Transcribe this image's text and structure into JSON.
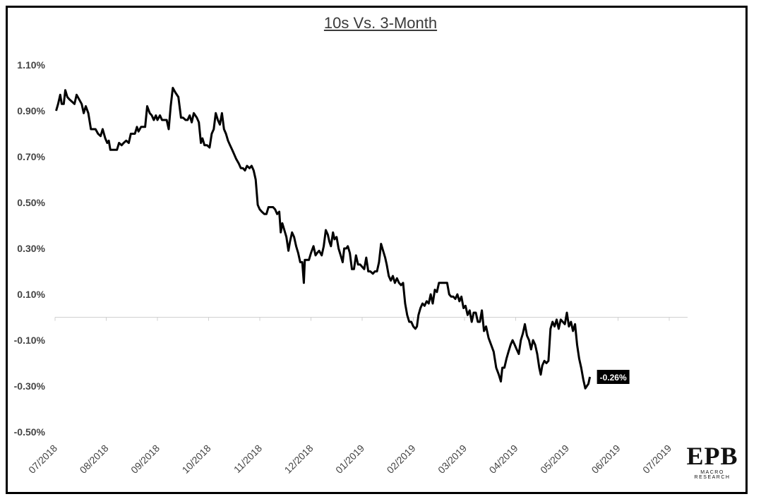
{
  "chart_data": {
    "type": "line",
    "title": "10s Vs. 3-Month",
    "xlabel": "",
    "ylabel": "",
    "y_ticks": [
      "1.10%",
      "0.90%",
      "0.70%",
      "0.50%",
      "0.30%",
      "0.10%",
      "-0.10%",
      "-0.30%",
      "-0.50%"
    ],
    "y_tick_values": [
      1.1,
      0.9,
      0.7,
      0.5,
      0.3,
      0.1,
      -0.1,
      -0.3,
      -0.5
    ],
    "ylim": [
      -0.5,
      1.1
    ],
    "x_ticks": [
      "07/2018",
      "08/2018",
      "09/2018",
      "10/2018",
      "11/2018",
      "12/2018",
      "01/2019",
      "02/2019",
      "03/2019",
      "04/2019",
      "05/2019",
      "06/2019",
      "07/2019"
    ],
    "x_range_months": [
      0,
      12.9
    ],
    "grid": false,
    "legend": "none",
    "series": [
      {
        "color": "#000000",
        "last_value_label": "-0.26%",
        "points": [
          [
            0.02,
            0.9
          ],
          [
            0.06,
            0.93
          ],
          [
            0.1,
            0.97
          ],
          [
            0.13,
            0.93
          ],
          [
            0.17,
            0.93
          ],
          [
            0.2,
            0.99
          ],
          [
            0.24,
            0.96
          ],
          [
            0.28,
            0.95
          ],
          [
            0.33,
            0.94
          ],
          [
            0.38,
            0.93
          ],
          [
            0.42,
            0.97
          ],
          [
            0.47,
            0.95
          ],
          [
            0.52,
            0.93
          ],
          [
            0.56,
            0.89
          ],
          [
            0.6,
            0.92
          ],
          [
            0.65,
            0.89
          ],
          [
            0.7,
            0.82
          ],
          [
            0.74,
            0.82
          ],
          [
            0.79,
            0.82
          ],
          [
            0.84,
            0.8
          ],
          [
            0.89,
            0.79
          ],
          [
            0.93,
            0.82
          ],
          [
            0.98,
            0.78
          ],
          [
            1.02,
            0.76
          ],
          [
            1.05,
            0.77
          ],
          [
            1.08,
            0.73
          ],
          [
            1.13,
            0.73
          ],
          [
            1.17,
            0.73
          ],
          [
            1.21,
            0.73
          ],
          [
            1.25,
            0.76
          ],
          [
            1.3,
            0.75
          ],
          [
            1.34,
            0.76
          ],
          [
            1.39,
            0.77
          ],
          [
            1.44,
            0.76
          ],
          [
            1.48,
            0.8
          ],
          [
            1.52,
            0.8
          ],
          [
            1.56,
            0.8
          ],
          [
            1.6,
            0.83
          ],
          [
            1.63,
            0.81
          ],
          [
            1.68,
            0.83
          ],
          [
            1.72,
            0.83
          ],
          [
            1.76,
            0.83
          ],
          [
            1.8,
            0.92
          ],
          [
            1.85,
            0.89
          ],
          [
            1.89,
            0.88
          ],
          [
            1.93,
            0.86
          ],
          [
            1.97,
            0.88
          ],
          [
            2.0,
            0.86
          ],
          [
            2.05,
            0.88
          ],
          [
            2.09,
            0.86
          ],
          [
            2.13,
            0.86
          ],
          [
            2.18,
            0.86
          ],
          [
            2.22,
            0.82
          ],
          [
            2.26,
            0.92
          ],
          [
            2.3,
            1.0
          ],
          [
            2.35,
            0.98
          ],
          [
            2.41,
            0.96
          ],
          [
            2.46,
            0.87
          ],
          [
            2.5,
            0.87
          ],
          [
            2.55,
            0.86
          ],
          [
            2.59,
            0.86
          ],
          [
            2.63,
            0.88
          ],
          [
            2.67,
            0.85
          ],
          [
            2.71,
            0.89
          ],
          [
            2.77,
            0.87
          ],
          [
            2.81,
            0.85
          ],
          [
            2.85,
            0.76
          ],
          [
            2.88,
            0.78
          ],
          [
            2.92,
            0.75
          ],
          [
            2.97,
            0.75
          ],
          [
            3.02,
            0.74
          ],
          [
            3.06,
            0.8
          ],
          [
            3.1,
            0.82
          ],
          [
            3.14,
            0.89
          ],
          [
            3.18,
            0.86
          ],
          [
            3.22,
            0.84
          ],
          [
            3.26,
            0.89
          ],
          [
            3.3,
            0.82
          ],
          [
            3.34,
            0.8
          ],
          [
            3.38,
            0.77
          ],
          [
            3.42,
            0.75
          ],
          [
            3.46,
            0.73
          ],
          [
            3.5,
            0.71
          ],
          [
            3.54,
            0.69
          ],
          [
            3.59,
            0.67
          ],
          [
            3.63,
            0.65
          ],
          [
            3.67,
            0.65
          ],
          [
            3.71,
            0.64
          ],
          [
            3.75,
            0.66
          ],
          [
            3.8,
            0.65
          ],
          [
            3.84,
            0.66
          ],
          [
            3.88,
            0.64
          ],
          [
            3.92,
            0.6
          ],
          [
            3.96,
            0.49
          ],
          [
            4.0,
            0.47
          ],
          [
            4.04,
            0.46
          ],
          [
            4.09,
            0.45
          ],
          [
            4.13,
            0.45
          ],
          [
            4.17,
            0.48
          ],
          [
            4.21,
            0.48
          ],
          [
            4.26,
            0.48
          ],
          [
            4.3,
            0.47
          ],
          [
            4.34,
            0.45
          ],
          [
            4.38,
            0.46
          ],
          [
            4.41,
            0.37
          ],
          [
            4.44,
            0.41
          ],
          [
            4.48,
            0.38
          ],
          [
            4.52,
            0.35
          ],
          [
            4.56,
            0.29
          ],
          [
            4.59,
            0.33
          ],
          [
            4.63,
            0.37
          ],
          [
            4.67,
            0.35
          ],
          [
            4.71,
            0.31
          ],
          [
            4.75,
            0.28
          ],
          [
            4.79,
            0.24
          ],
          [
            4.83,
            0.24
          ],
          [
            4.86,
            0.15
          ],
          [
            4.88,
            0.25
          ],
          [
            4.92,
            0.25
          ],
          [
            4.96,
            0.25
          ],
          [
            5.0,
            0.28
          ],
          [
            5.05,
            0.31
          ],
          [
            5.09,
            0.27
          ],
          [
            5.12,
            0.28
          ],
          [
            5.16,
            0.29
          ],
          [
            5.21,
            0.27
          ],
          [
            5.25,
            0.31
          ],
          [
            5.29,
            0.38
          ],
          [
            5.33,
            0.36
          ],
          [
            5.36,
            0.33
          ],
          [
            5.39,
            0.31
          ],
          [
            5.43,
            0.37
          ],
          [
            5.46,
            0.34
          ],
          [
            5.5,
            0.35
          ],
          [
            5.54,
            0.3
          ],
          [
            5.58,
            0.27
          ],
          [
            5.62,
            0.24
          ],
          [
            5.65,
            0.3
          ],
          [
            5.69,
            0.3
          ],
          [
            5.72,
            0.31
          ],
          [
            5.76,
            0.28
          ],
          [
            5.8,
            0.21
          ],
          [
            5.84,
            0.21
          ],
          [
            5.88,
            0.27
          ],
          [
            5.92,
            0.23
          ],
          [
            5.96,
            0.23
          ],
          [
            6.0,
            0.22
          ],
          [
            6.04,
            0.21
          ],
          [
            6.08,
            0.26
          ],
          [
            6.12,
            0.2
          ],
          [
            6.16,
            0.2
          ],
          [
            6.21,
            0.19
          ],
          [
            6.25,
            0.2
          ],
          [
            6.29,
            0.2
          ],
          [
            6.33,
            0.24
          ],
          [
            6.37,
            0.32
          ],
          [
            6.41,
            0.29
          ],
          [
            6.45,
            0.26
          ],
          [
            6.48,
            0.23
          ],
          [
            6.52,
            0.18
          ],
          [
            6.56,
            0.16
          ],
          [
            6.6,
            0.18
          ],
          [
            6.64,
            0.15
          ],
          [
            6.68,
            0.17
          ],
          [
            6.72,
            0.15
          ],
          [
            6.76,
            0.14
          ],
          [
            6.8,
            0.15
          ],
          [
            6.84,
            0.06
          ],
          [
            6.88,
            0.01
          ],
          [
            6.92,
            -0.02
          ],
          [
            6.96,
            -0.02
          ],
          [
            7.0,
            -0.04
          ],
          [
            7.04,
            -0.05
          ],
          [
            7.07,
            -0.04
          ],
          [
            7.1,
            0.01
          ],
          [
            7.14,
            0.04
          ],
          [
            7.18,
            0.06
          ],
          [
            7.22,
            0.05
          ],
          [
            7.26,
            0.07
          ],
          [
            7.3,
            0.06
          ],
          [
            7.34,
            0.1
          ],
          [
            7.38,
            0.06
          ],
          [
            7.42,
            0.12
          ],
          [
            7.46,
            0.11
          ],
          [
            7.5,
            0.15
          ],
          [
            7.54,
            0.15
          ],
          [
            7.58,
            0.15
          ],
          [
            7.62,
            0.15
          ],
          [
            7.66,
            0.15
          ],
          [
            7.7,
            0.1
          ],
          [
            7.74,
            0.09
          ],
          [
            7.78,
            0.09
          ],
          [
            7.82,
            0.08
          ],
          [
            7.86,
            0.1
          ],
          [
            7.9,
            0.07
          ],
          [
            7.94,
            0.09
          ],
          [
            7.98,
            0.04
          ],
          [
            8.02,
            0.05
          ],
          [
            8.06,
            0.01
          ],
          [
            8.1,
            0.03
          ],
          [
            8.14,
            -0.02
          ],
          [
            8.18,
            0.02
          ],
          [
            8.22,
            0.02
          ],
          [
            8.26,
            -0.02
          ],
          [
            8.3,
            -0.02
          ],
          [
            8.34,
            0.03
          ],
          [
            8.38,
            -0.06
          ],
          [
            8.42,
            -0.04
          ],
          [
            8.47,
            -0.09
          ],
          [
            8.52,
            -0.12
          ],
          [
            8.57,
            -0.15
          ],
          [
            8.62,
            -0.22
          ],
          [
            8.67,
            -0.25
          ],
          [
            8.71,
            -0.28
          ],
          [
            8.74,
            -0.22
          ],
          [
            8.78,
            -0.22
          ],
          [
            8.82,
            -0.18
          ],
          [
            8.86,
            -0.15
          ],
          [
            8.9,
            -0.12
          ],
          [
            8.94,
            -0.1
          ],
          [
            8.98,
            -0.12
          ],
          [
            9.02,
            -0.14
          ],
          [
            9.06,
            -0.16
          ],
          [
            9.1,
            -0.1
          ],
          [
            9.14,
            -0.07
          ],
          [
            9.18,
            -0.03
          ],
          [
            9.22,
            -0.08
          ],
          [
            9.26,
            -0.1
          ],
          [
            9.3,
            -0.14
          ],
          [
            9.34,
            -0.1
          ],
          [
            9.38,
            -0.12
          ],
          [
            9.42,
            -0.16
          ],
          [
            9.46,
            -0.22
          ],
          [
            9.49,
            -0.25
          ],
          [
            9.52,
            -0.21
          ],
          [
            9.56,
            -0.19
          ],
          [
            9.6,
            -0.2
          ],
          [
            9.64,
            -0.19
          ],
          [
            9.68,
            -0.05
          ],
          [
            9.72,
            -0.02
          ],
          [
            9.76,
            -0.04
          ],
          [
            9.8,
            -0.01
          ],
          [
            9.84,
            -0.05
          ],
          [
            9.88,
            -0.01
          ],
          [
            9.92,
            -0.02
          ],
          [
            9.96,
            -0.03
          ],
          [
            10.0,
            0.02
          ],
          [
            10.04,
            -0.04
          ],
          [
            10.08,
            -0.02
          ],
          [
            10.12,
            -0.06
          ],
          [
            10.16,
            -0.03
          ],
          [
            10.2,
            -0.12
          ],
          [
            10.24,
            -0.18
          ],
          [
            10.28,
            -0.22
          ],
          [
            10.32,
            -0.27
          ],
          [
            10.36,
            -0.31
          ],
          [
            10.39,
            -0.3
          ],
          [
            10.42,
            -0.29
          ],
          [
            10.45,
            -0.26
          ]
        ]
      }
    ]
  },
  "logo": {
    "main": "EPB",
    "sub": "MACRO RESEARCH"
  }
}
